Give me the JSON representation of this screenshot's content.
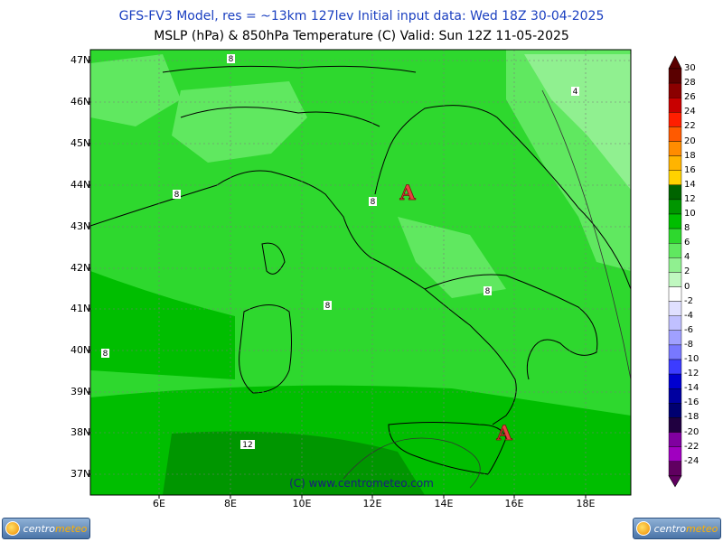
{
  "header": {
    "line1": "GFS-FV3 Model, res = ~13km 127lev    Initial input data: Wed 18Z 30-04-2025",
    "line2": "MSLP (hPa) & 850hPa Temperature (C)  Valid: Sun 12Z 11-05-2025"
  },
  "map": {
    "lat_labels": [
      "47N",
      "46N",
      "45N",
      "44N",
      "43N",
      "42N",
      "41N",
      "40N",
      "39N",
      "38N",
      "37N"
    ],
    "lon_labels": [
      "6E",
      "8E",
      "10E",
      "12E",
      "14E",
      "16E",
      "18E"
    ],
    "contour_labels": [
      "8",
      "4",
      "8",
      "8",
      "8",
      "8",
      "8",
      "12"
    ],
    "high_markers": [
      "A",
      "A"
    ],
    "copyright": "(C) www.centrometeo.com"
  },
  "scale": {
    "values": [
      "30",
      "28",
      "26",
      "24",
      "22",
      "20",
      "18",
      "16",
      "14",
      "12",
      "10",
      "8",
      "6",
      "4",
      "2",
      "0",
      "-2",
      "-4",
      "-6",
      "-8",
      "-10",
      "-12",
      "-14",
      "-16",
      "-18",
      "-20",
      "-22",
      "-24"
    ],
    "colors": [
      "#5a0000",
      "#8b0000",
      "#c80000",
      "#ff1e00",
      "#ff5a00",
      "#ff8c00",
      "#ffb400",
      "#ffd200",
      "#006400",
      "#009600",
      "#00be00",
      "#2ed82e",
      "#60e860",
      "#90f090",
      "#c0f8c0",
      "#ffffff",
      "#e0e0ff",
      "#c0c0ff",
      "#a0a0ff",
      "#7878ff",
      "#3c3cff",
      "#0000d0",
      "#0000a0",
      "#000070",
      "#200040",
      "#8000a0",
      "#a000c0",
      "#600060"
    ]
  },
  "logos": {
    "brand_a": "centro",
    "brand_b": "meteo"
  }
}
